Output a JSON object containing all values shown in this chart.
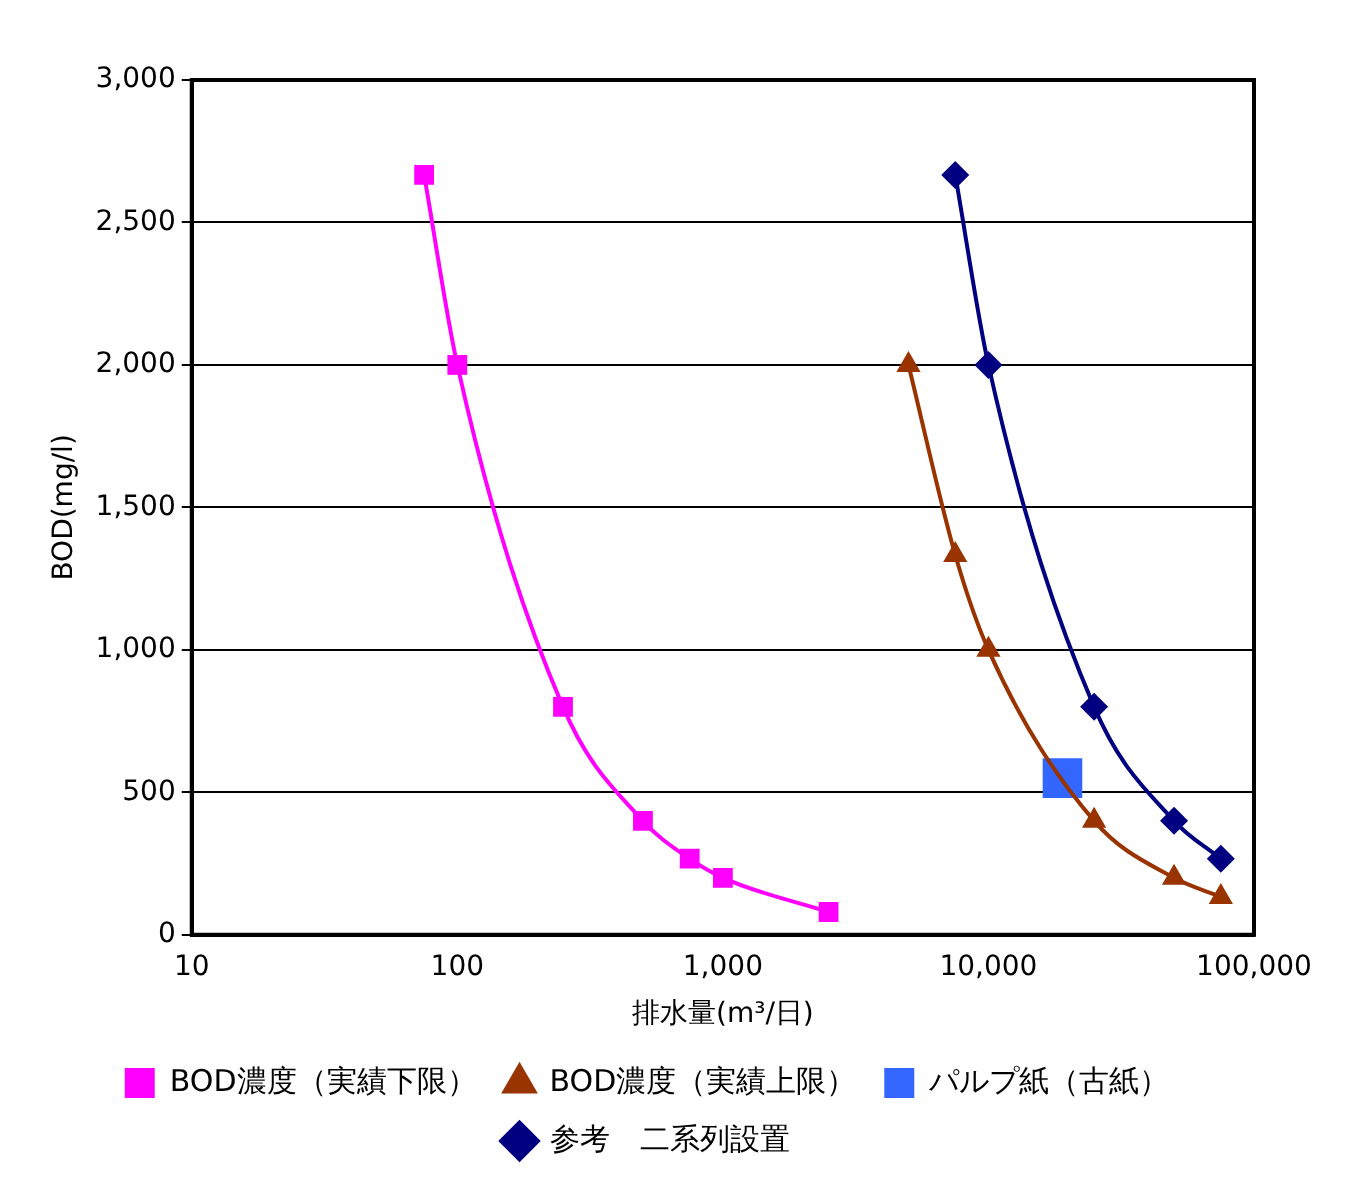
{
  "chart_data": {
    "type": "line",
    "xlabel": "排水量(m³/日)",
    "ylabel": "BOD(mg/l)",
    "log": "x",
    "grid": "y",
    "legend": "bottom",
    "xlim": [
      10,
      100000
    ],
    "xticks": [
      10,
      100,
      {
        "value": 1000,
        "label": "1,000"
      },
      {
        "value": 10000,
        "label": "10,000"
      },
      {
        "value": 100000,
        "label": "100,000"
      }
    ],
    "ylim": [
      0,
      3000
    ],
    "yticks": [
      0,
      500,
      {
        "value": 1000,
        "label": "1,000"
      },
      {
        "value": 1500,
        "label": "1,500"
      },
      {
        "value": 2000,
        "label": "2,000"
      },
      {
        "value": 2500,
        "label": "2,500"
      },
      {
        "value": 3000,
        "label": "3,000"
      }
    ],
    "series": [
      {
        "name": "BOD濃度（実績下限）",
        "color": "#ff00ff",
        "marker": "square",
        "x": [
          75,
          100,
          250,
          500,
          750,
          1000,
          2500
        ],
        "values": [
          2667,
          2000,
          800,
          400,
          267,
          200,
          80
        ]
      },
      {
        "name": "BOD濃度（実績上限）",
        "color": "#993300",
        "marker": "triangle",
        "x": [
          5000,
          7500,
          10000,
          25000,
          50000,
          75000
        ],
        "values": [
          2000,
          1333,
          1000,
          400,
          200,
          133
        ]
      },
      {
        "name": "パルプ紙（古紙）",
        "type": "scatter",
        "color": "#3366ff",
        "marker": "square",
        "x": [
          19000
        ],
        "values": [
          550
        ]
      },
      {
        "name": "参考　二系列設置",
        "color": "#000080",
        "marker": "diamond",
        "x": [
          7500,
          10000,
          25000,
          50000,
          75000
        ],
        "values": [
          2667,
          2000,
          800,
          400,
          267
        ]
      }
    ]
  }
}
